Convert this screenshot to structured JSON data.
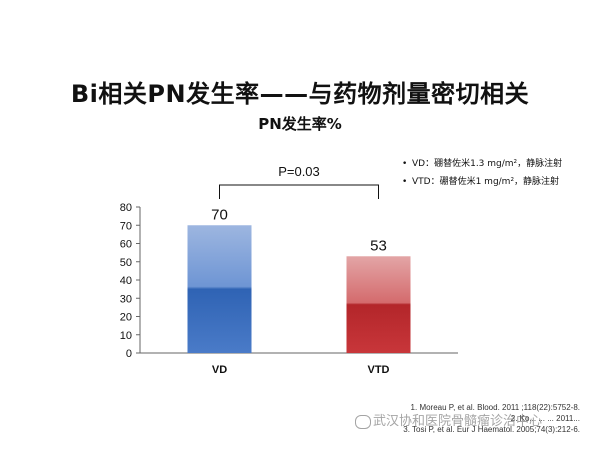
{
  "slide": {
    "title": "Bi相关PN发生率——与药物剂量密切相关",
    "subtitle": "PN发生率%",
    "legend": [
      {
        "bullet": "•",
        "text": "VD：硼替佐米1.3 mg/m²，静脉注射"
      },
      {
        "bullet": "•",
        "text": "VTD：硼替佐米1 mg/m²，静脉注射"
      }
    ],
    "references": [
      "1. Moreau P, et al. Blood. 2011 ;118(22):5752-8.",
      "2. Ko... ... ... 2011...",
      "3. Tosi P, et al. Eur J Haematol. 2005;74(3):212-6."
    ],
    "watermark": "武汉协和医院骨髓瘤诊治中心"
  },
  "chart_data": {
    "type": "bar",
    "title": "",
    "xlabel": "",
    "ylabel": "",
    "categories": [
      "VD",
      "VTD"
    ],
    "values": [
      70,
      53
    ],
    "ylim": [
      0,
      80
    ],
    "yticks": [
      0,
      10,
      20,
      30,
      40,
      50,
      60,
      70,
      80
    ],
    "grid": false,
    "colors": [
      "#4a7bc8",
      "#c8363a"
    ],
    "annotation": {
      "text": "P=0.03",
      "between": [
        "VD",
        "VTD"
      ]
    }
  }
}
